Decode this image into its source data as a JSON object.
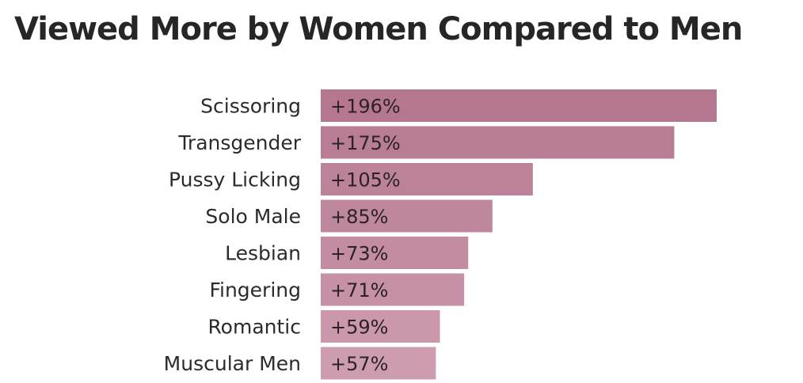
{
  "chart_data": {
    "type": "bar",
    "orientation": "horizontal",
    "title": "Viewed More by Women Compared to Men",
    "categories": [
      "Scissoring",
      "Transgender",
      "Pussy Licking",
      "Solo Male",
      "Lesbian",
      "Fingering",
      "Romantic",
      "Muscular Men"
    ],
    "values": [
      196,
      175,
      105,
      85,
      73,
      71,
      59,
      57
    ],
    "value_labels": [
      "+196%",
      "+175%",
      "+105%",
      "+85%",
      "+73%",
      "+71%",
      "+59%",
      "+57%"
    ],
    "xlabel": "",
    "ylabel": "",
    "xlim": [
      0,
      196
    ],
    "grid": false,
    "colors": {
      "top": "#b5778f",
      "bottom": "#cd9cb1"
    }
  }
}
